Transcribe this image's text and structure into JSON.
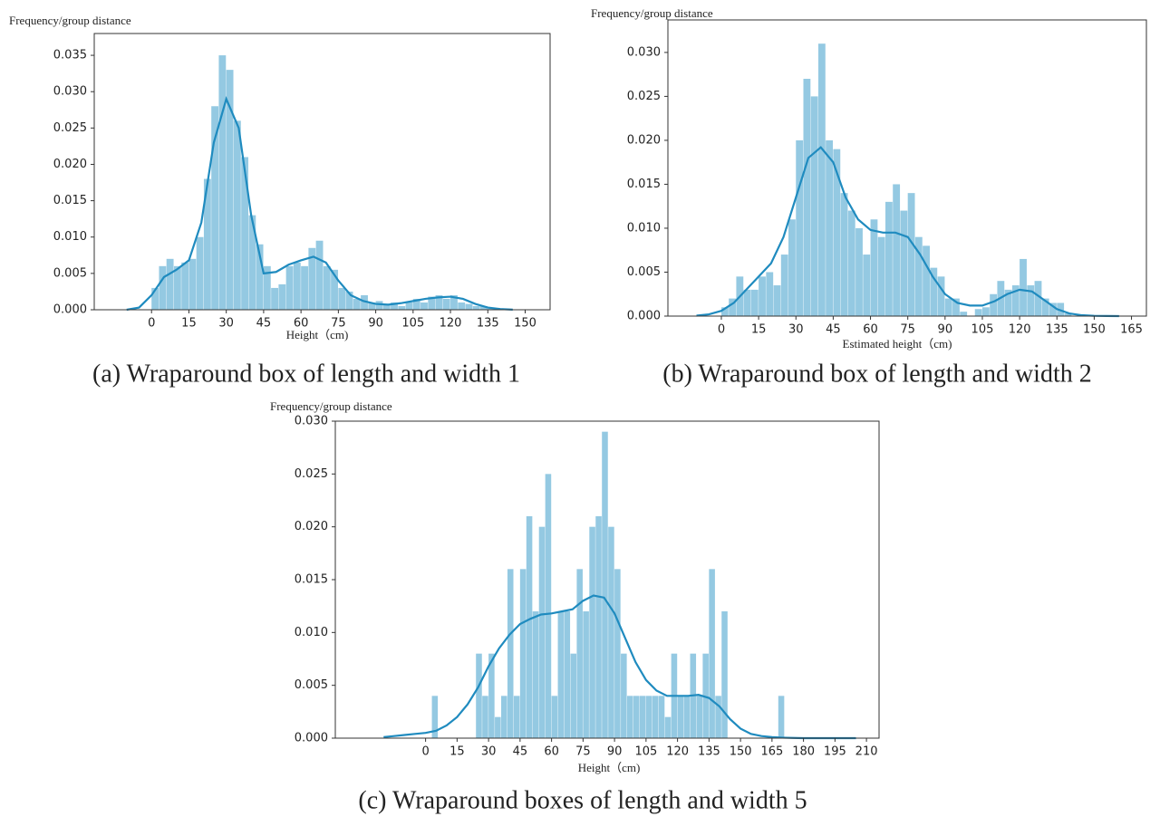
{
  "chart_data": [
    {
      "type": "histogram",
      "caption": "(a) Wraparound box of length and width 1",
      "ylabel": "Frequency/group distance",
      "xlabel": "Height（cm)",
      "color": "#94c9e2",
      "bins": [
        0,
        3,
        6,
        9,
        12,
        15,
        18,
        21,
        24,
        27,
        30,
        33,
        36,
        39,
        42,
        45,
        48,
        51,
        54,
        57,
        60,
        63,
        66,
        69,
        72,
        75,
        78,
        81,
        84,
        87,
        90,
        93,
        96,
        99,
        102,
        105,
        108,
        111,
        114,
        117,
        120,
        123,
        126,
        129,
        132,
        135,
        138
      ],
      "counts": [
        0.003,
        0.006,
        0.007,
        0.006,
        0.0065,
        0.007,
        0.01,
        0.018,
        0.028,
        0.035,
        0.033,
        0.026,
        0.021,
        0.013,
        0.009,
        0.006,
        0.003,
        0.0035,
        0.006,
        0.0065,
        0.006,
        0.0085,
        0.0095,
        0.006,
        0.0055,
        0.003,
        0.0025,
        0.0015,
        0.002,
        0.001,
        0.0012,
        0.0008,
        0.001,
        0.0005,
        0.001,
        0.0015,
        0.001,
        0.0018,
        0.002,
        0.0015,
        0.002,
        0.001,
        0.0008,
        0.0005,
        0.0005,
        0.0003
      ],
      "kde": {
        "color": "#1f8bbf",
        "x": [
          -10,
          -5,
          0,
          5,
          10,
          15,
          20,
          25,
          30,
          35,
          40,
          45,
          50,
          55,
          60,
          65,
          70,
          75,
          80,
          85,
          90,
          95,
          100,
          105,
          110,
          115,
          120,
          125,
          130,
          135,
          140,
          145
        ],
        "values": [
          0,
          0.0003,
          0.002,
          0.0045,
          0.0055,
          0.0068,
          0.012,
          0.023,
          0.029,
          0.025,
          0.013,
          0.005,
          0.0052,
          0.0062,
          0.0068,
          0.0073,
          0.0065,
          0.004,
          0.002,
          0.0012,
          0.0008,
          0.0007,
          0.0009,
          0.0012,
          0.0015,
          0.0017,
          0.0018,
          0.0015,
          0.0008,
          0.0003,
          0.0001,
          2e-05
        ]
      },
      "xlim": [
        -23,
        160
      ],
      "ylim": [
        0,
        0.038
      ],
      "xticks": [
        0,
        15,
        30,
        45,
        60,
        75,
        90,
        105,
        120,
        135,
        150
      ],
      "yticks": [
        {
          "value": 0,
          "label": "0.000"
        },
        {
          "value": 0.005,
          "label": "0.005"
        },
        {
          "value": 0.01,
          "label": "0.010"
        },
        {
          "value": 0.015,
          "label": "0.015"
        },
        {
          "value": 0.02,
          "label": "0.020"
        },
        {
          "value": 0.025,
          "label": "0.025"
        },
        {
          "value": 0.03,
          "label": "0.030"
        },
        {
          "value": 0.035,
          "label": "0.035"
        }
      ]
    },
    {
      "type": "histogram",
      "caption": "(b) Wraparound box of length and width 2",
      "ylabel": "Frequency/group distance",
      "xlabel": "Estimated height（cm)",
      "color": "#94c9e2",
      "bins": [
        0,
        3,
        6,
        9,
        12,
        15,
        18,
        21,
        24,
        27,
        30,
        33,
        36,
        39,
        42,
        45,
        48,
        51,
        54,
        57,
        60,
        63,
        66,
        69,
        72,
        75,
        78,
        81,
        84,
        87,
        90,
        93,
        96,
        99,
        102,
        105,
        108,
        111,
        114,
        117,
        120,
        123,
        126,
        129,
        132,
        135,
        138,
        141
      ],
      "counts": [
        0.001,
        0.002,
        0.0045,
        0.003,
        0.003,
        0.0045,
        0.005,
        0.0035,
        0.007,
        0.011,
        0.02,
        0.027,
        0.025,
        0.031,
        0.02,
        0.019,
        0.014,
        0.012,
        0.01,
        0.007,
        0.011,
        0.009,
        0.013,
        0.015,
        0.012,
        0.014,
        0.009,
        0.008,
        0.0055,
        0.0045,
        0.002,
        0.002,
        0.0005,
        0,
        0.0008,
        0.001,
        0.0025,
        0.004,
        0.003,
        0.0035,
        0.0065,
        0.0035,
        0.004,
        0.002,
        0.0015,
        0.0015,
        0.0003
      ],
      "kde": {
        "color": "#1f8bbf",
        "x": [
          -10,
          -5,
          0,
          5,
          10,
          15,
          20,
          25,
          30,
          35,
          40,
          45,
          50,
          55,
          60,
          65,
          70,
          75,
          80,
          85,
          90,
          95,
          100,
          105,
          110,
          115,
          120,
          125,
          130,
          135,
          140,
          145,
          150,
          155,
          160
        ],
        "values": [
          5e-05,
          0.0002,
          0.0006,
          0.0015,
          0.003,
          0.0045,
          0.006,
          0.009,
          0.0135,
          0.018,
          0.0192,
          0.0175,
          0.0135,
          0.011,
          0.0098,
          0.0095,
          0.0095,
          0.009,
          0.007,
          0.0045,
          0.0025,
          0.0015,
          0.0012,
          0.0012,
          0.0017,
          0.0025,
          0.003,
          0.0028,
          0.0018,
          0.0008,
          0.0003,
          0.0001,
          3e-05,
          1e-05,
          0
        ]
      },
      "xlim": [
        -21.5,
        171
      ],
      "ylim": [
        0,
        0.0337
      ],
      "xticks": [
        0,
        15,
        30,
        45,
        60,
        75,
        90,
        105,
        120,
        135,
        150,
        165
      ],
      "yticks": [
        {
          "value": 0,
          "label": "0.000"
        },
        {
          "value": 0.005,
          "label": "0.005"
        },
        {
          "value": 0.01,
          "label": "0.010"
        },
        {
          "value": 0.015,
          "label": "0.015"
        },
        {
          "value": 0.02,
          "label": "0.020"
        },
        {
          "value": 0.025,
          "label": "0.025"
        },
        {
          "value": 0.03,
          "label": "0.030"
        }
      ]
    },
    {
      "type": "histogram",
      "caption": "(c) Wraparound boxes of length and width 5",
      "ylabel": "Frequency/group distance",
      "xlabel": "Height（cm)",
      "color": "#94c9e2",
      "bins": [
        0,
        3,
        6,
        9,
        12,
        15,
        18,
        21,
        24,
        27,
        30,
        33,
        36,
        39,
        42,
        45,
        48,
        51,
        54,
        57,
        60,
        63,
        66,
        69,
        72,
        75,
        78,
        81,
        84,
        87,
        90,
        93,
        96,
        99,
        102,
        105,
        108,
        111,
        114,
        117,
        120,
        123,
        126,
        129,
        132,
        135,
        138,
        141,
        144,
        147,
        150,
        153,
        156,
        159,
        162,
        165,
        168,
        171
      ],
      "counts": [
        0,
        0.004,
        0,
        0,
        0,
        0,
        0,
        0,
        0.008,
        0.004,
        0.008,
        0.002,
        0.004,
        0.016,
        0.004,
        0.016,
        0.021,
        0.012,
        0.02,
        0.025,
        0.004,
        0.012,
        0.012,
        0.008,
        0.016,
        0.012,
        0.02,
        0.021,
        0.029,
        0.02,
        0.016,
        0.008,
        0.004,
        0.004,
        0.004,
        0.004,
        0.004,
        0.004,
        0.002,
        0.008,
        0.004,
        0.004,
        0.008,
        0.004,
        0.008,
        0.016,
        0.004,
        0.012,
        0,
        0,
        0,
        0,
        0,
        0,
        0,
        0,
        0.004
      ],
      "kde": {
        "color": "#1f8bbf",
        "x": [
          -20,
          -15,
          -10,
          -5,
          0,
          5,
          10,
          15,
          20,
          25,
          30,
          35,
          40,
          45,
          50,
          55,
          60,
          65,
          70,
          75,
          80,
          85,
          90,
          95,
          100,
          105,
          110,
          115,
          120,
          125,
          130,
          135,
          140,
          145,
          150,
          155,
          160,
          165,
          170,
          175,
          180,
          185,
          190,
          195,
          200,
          205
        ],
        "values": [
          0.0001,
          0.0002,
          0.0003,
          0.0004,
          0.0005,
          0.0007,
          0.0012,
          0.002,
          0.0032,
          0.0048,
          0.0068,
          0.0085,
          0.0098,
          0.0108,
          0.0113,
          0.0117,
          0.0118,
          0.012,
          0.0122,
          0.013,
          0.0135,
          0.0133,
          0.0118,
          0.0095,
          0.0072,
          0.0055,
          0.0045,
          0.004,
          0.004,
          0.004,
          0.0041,
          0.0038,
          0.003,
          0.0018,
          0.0009,
          0.0004,
          0.0002,
          0.0001,
          5e-05,
          2e-05,
          0,
          0,
          0,
          0,
          0,
          0
        ]
      },
      "xlim": [
        -43,
        216
      ],
      "ylim": [
        0,
        0.03
      ],
      "xticks": [
        0,
        15,
        30,
        45,
        60,
        75,
        90,
        105,
        120,
        135,
        150,
        165,
        180,
        195,
        210
      ],
      "yticks": [
        {
          "value": 0,
          "label": "0.000"
        },
        {
          "value": 0.005,
          "label": "0.005"
        },
        {
          "value": 0.01,
          "label": "0.010"
        },
        {
          "value": 0.015,
          "label": "0.015"
        },
        {
          "value": 0.02,
          "label": "0.020"
        },
        {
          "value": 0.025,
          "label": "0.025"
        },
        {
          "value": 0.03,
          "label": "0.030"
        }
      ]
    }
  ]
}
